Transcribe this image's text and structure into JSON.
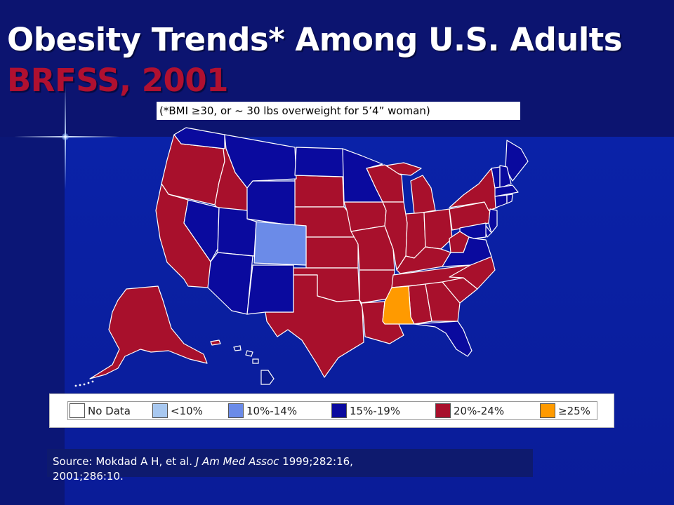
{
  "slide": {
    "title": "Obesity Trends* Among U.S. Adults",
    "subtitle": "BRFSS, 2001",
    "footnote": "(*BMI ≥30, or ~ 30 lbs overweight for 5’4” woman)"
  },
  "legend": [
    {
      "label": "No Data",
      "color": "#ffffff"
    },
    {
      "label": "<10%",
      "color": "#a8c8f0"
    },
    {
      "label": "10%-14%",
      "color": "#6b8be8"
    },
    {
      "label": "15%-19%",
      "color": "#0a0a9e"
    },
    {
      "label": "20%-24%",
      "color": "#a8102c"
    },
    {
      "label": "≥25%",
      "color": "#ff9a00"
    }
  ],
  "map": {
    "states_by_category": {
      "10%-14%": [
        "CO"
      ],
      "15%-19%": [
        "WA",
        "MT",
        "WY",
        "ND",
        "NV",
        "UT",
        "AZ",
        "NM",
        "MN",
        "VT",
        "NH",
        "ME",
        "MA",
        "CT",
        "RI",
        "NJ",
        "DE",
        "MD",
        "VA",
        "FL"
      ],
      "20%-24%": [
        "OR",
        "CA",
        "ID",
        "SD",
        "NE",
        "KS",
        "OK",
        "TX",
        "IA",
        "MO",
        "AR",
        "LA",
        "WI",
        "IL",
        "MI",
        "IN",
        "OH",
        "KY",
        "TN",
        "AL",
        "GA",
        "SC",
        "NC",
        "WV",
        "PA",
        "NY",
        "AK",
        "HI"
      ],
      "≥25%": [
        "MS"
      ]
    }
  },
  "source": {
    "prefix": "Source: Mokdad A H, et al. ",
    "journal": "J Am Med Assoc",
    "rest": " 1999;282:16,",
    "line2": "2001;286:10."
  }
}
